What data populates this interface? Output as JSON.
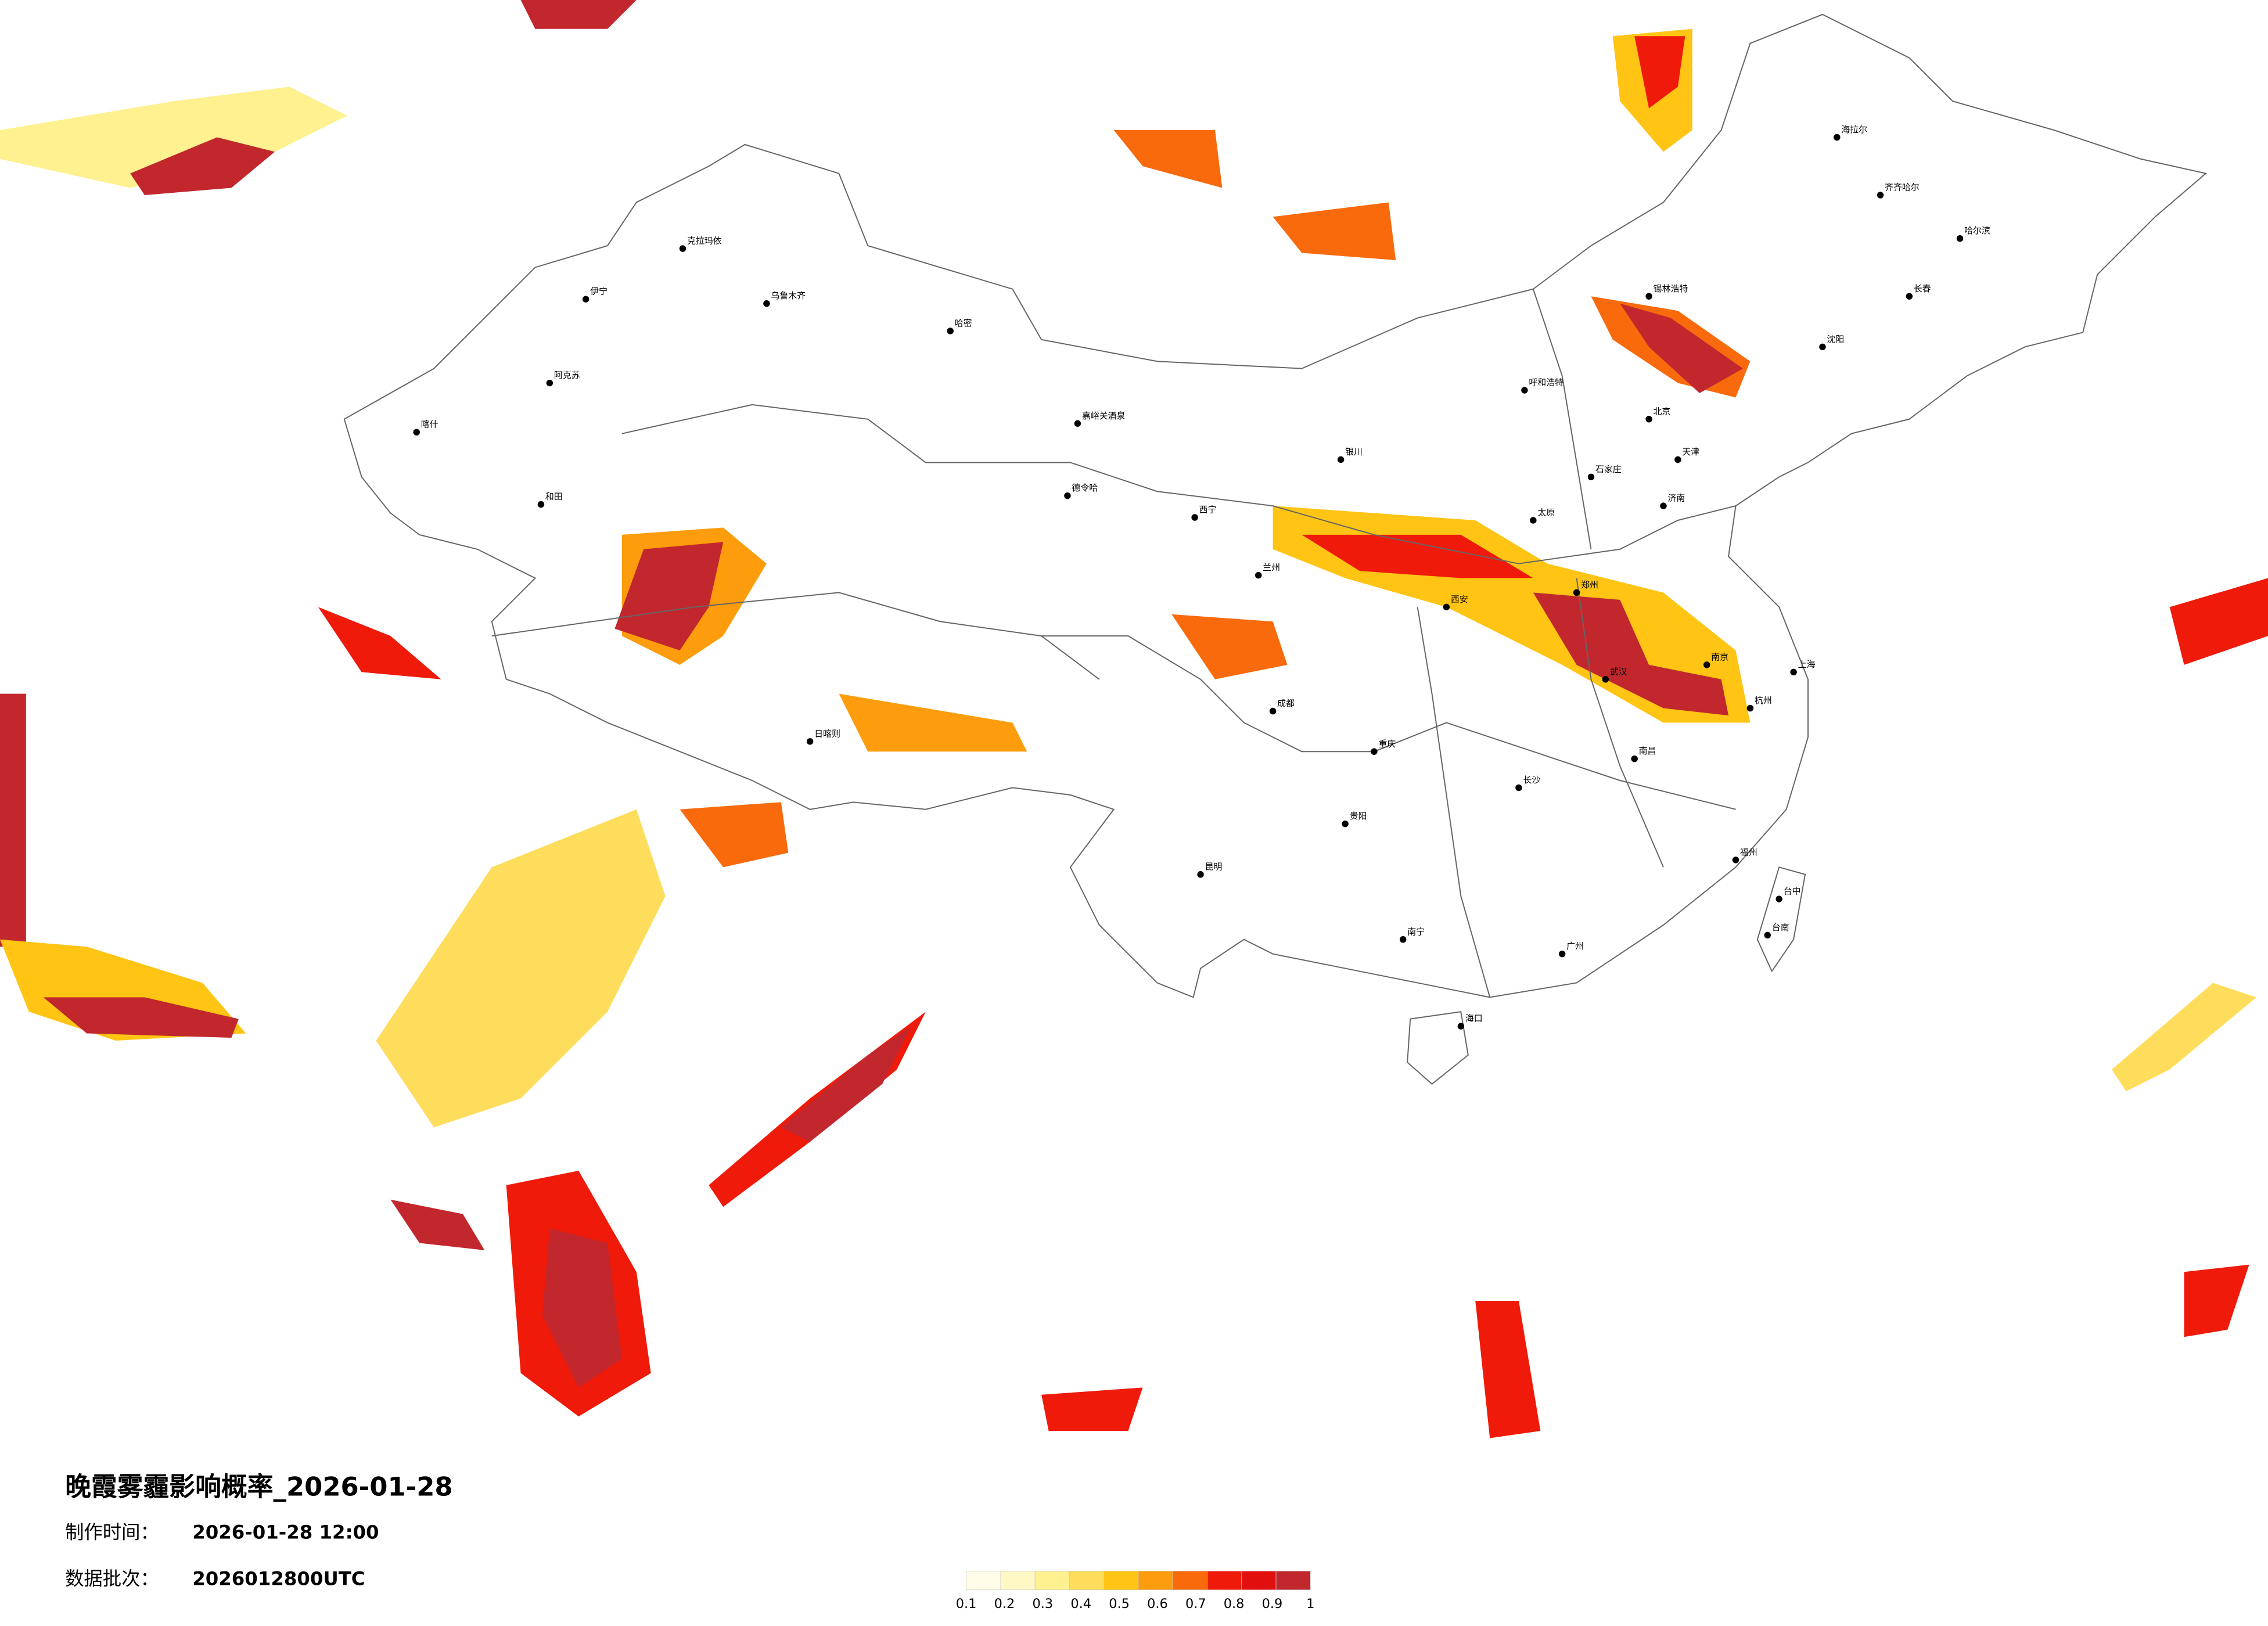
{
  "header": {
    "title": "晚霞雾霾影响概率_2026-01-28",
    "made_label": "制作时间：",
    "made_time": "2026-01-28 12:00",
    "batch_label": "数据批次：",
    "batch": "2026012800UTC"
  },
  "legend": {
    "colors": [
      "#fffde8",
      "#fff8c4",
      "#fff090",
      "#ffdd5c",
      "#ffc414",
      "#fd9c0c",
      "#f86a0c",
      "#ef1a0a",
      "#e20f0f",
      "#c1272d"
    ],
    "ticks": [
      0.1,
      0.2,
      0.3,
      0.4,
      0.5,
      0.6,
      0.7,
      0.8,
      0.9,
      1
    ]
  },
  "cities": [
    "克拉玛依",
    "乌鲁木齐",
    "哈密",
    "伊宁",
    "阿克苏",
    "喀什",
    "和田",
    "嘉峪关酒泉",
    "德令哈",
    "日喀则",
    "西宁",
    "兰州",
    "银川",
    "呼和浩特",
    "锡林浩特",
    "北京",
    "天津",
    "石家庄",
    "太原",
    "济南",
    "郑州",
    "西安",
    "成都",
    "重庆",
    "贵阳",
    "昆明",
    "南宁",
    "广州",
    "长沙",
    "武汉",
    "南昌",
    "福州",
    "杭州",
    "上海",
    "南京",
    "沈阳",
    "长春",
    "哈尔滨",
    "齐齐哈尔",
    "海拉尔",
    "海口",
    "台中",
    "台南"
  ]
}
